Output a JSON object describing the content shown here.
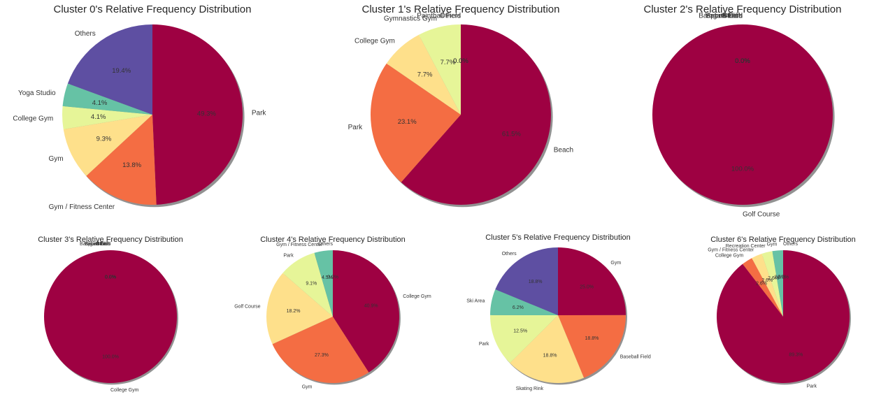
{
  "palette": [
    "#9e0142",
    "#f46d43",
    "#fee08b",
    "#e6f598",
    "#66c2a5",
    "#5e4fa2"
  ],
  "chart_data": [
    {
      "type": "pie",
      "title": "Cluster 0's Relative Frequency Distribution",
      "slices": [
        {
          "label": "Park",
          "value": 49.3,
          "pct": "49.3%",
          "color": "#9e0142"
        },
        {
          "label": "Gym / Fitness Center",
          "value": 13.8,
          "pct": "13.8%",
          "color": "#f46d43"
        },
        {
          "label": "Gym",
          "value": 9.3,
          "pct": "9.3%",
          "color": "#fee08b"
        },
        {
          "label": "College Gym",
          "value": 4.1,
          "pct": "4.1%",
          "color": "#e6f598"
        },
        {
          "label": "Yoga Studio",
          "value": 4.1,
          "pct": "4.1%",
          "color": "#66c2a5"
        },
        {
          "label": "Others",
          "value": 19.4,
          "pct": "19.4%",
          "color": "#5e4fa2"
        }
      ]
    },
    {
      "type": "pie",
      "title": "Cluster 1's Relative Frequency Distribution",
      "slices": [
        {
          "label": "Beach",
          "value": 61.5,
          "pct": "61.5%",
          "color": "#9e0142"
        },
        {
          "label": "Park",
          "value": 23.1,
          "pct": "23.1%",
          "color": "#f46d43"
        },
        {
          "label": "College Gym",
          "value": 7.7,
          "pct": "7.7%",
          "color": "#fee08b"
        },
        {
          "label": "Gymnastics Gym",
          "value": 7.7,
          "pct": "7.7%",
          "color": "#e6f598"
        },
        {
          "label": "Paintball Field",
          "value": 0,
          "pct": "0.0%",
          "color": "#66c2a5"
        },
        {
          "label": "Others",
          "value": 0,
          "pct": "0.0%",
          "color": "#5e4fa2"
        }
      ]
    },
    {
      "type": "pie",
      "title": "Cluster 2's Relative Frequency Distribution",
      "slices": [
        {
          "label": "Golf Course",
          "value": 100.0,
          "pct": "100.0%",
          "color": "#9e0142"
        },
        {
          "label": "Baseball Field",
          "value": 0,
          "pct": "0.0%",
          "color": "#f46d43"
        },
        {
          "label": "Beach",
          "value": 0,
          "pct": "0.0%",
          "color": "#fee08b"
        },
        {
          "label": "Yoga Studio",
          "value": 0,
          "pct": "0.0%",
          "color": "#e6f598"
        },
        {
          "label": "Sports Club",
          "value": 0,
          "pct": "0.0%",
          "color": "#66c2a5"
        },
        {
          "label": "Others",
          "value": 0,
          "pct": "0.0%",
          "color": "#5e4fa2"
        }
      ]
    },
    {
      "type": "pie",
      "title": "Cluster 3's Relative Frequency Distribution",
      "slices": [
        {
          "label": "College Gym",
          "value": 100.0,
          "pct": "100.0%",
          "color": "#9e0142"
        },
        {
          "label": "Baseball Field",
          "value": 0,
          "pct": "0.0%",
          "color": "#f46d43"
        },
        {
          "label": "Beach",
          "value": 0,
          "pct": "0.0%",
          "color": "#fee08b"
        },
        {
          "label": "Yoga Studio",
          "value": 0,
          "pct": "0.0%",
          "color": "#e6f598"
        },
        {
          "label": "Sports Club",
          "value": 0,
          "pct": "0.0%",
          "color": "#66c2a5"
        },
        {
          "label": "Others",
          "value": 0,
          "pct": "0.0%",
          "color": "#5e4fa2"
        }
      ]
    },
    {
      "type": "pie",
      "title": "Cluster 4's Relative Frequency Distribution",
      "slices": [
        {
          "label": "College Gym",
          "value": 40.9,
          "pct": "40.9%",
          "color": "#9e0142"
        },
        {
          "label": "Gym",
          "value": 27.3,
          "pct": "27.3%",
          "color": "#f46d43"
        },
        {
          "label": "Golf Course",
          "value": 18.2,
          "pct": "18.2%",
          "color": "#fee08b"
        },
        {
          "label": "Park",
          "value": 9.1,
          "pct": "9.1%",
          "color": "#e6f598"
        },
        {
          "label": "Gym / Fitness Center",
          "value": 4.5,
          "pct": "4.5%",
          "color": "#66c2a5"
        },
        {
          "label": "Others",
          "value": 0,
          "pct": "0.0%",
          "color": "#5e4fa2"
        }
      ]
    },
    {
      "type": "pie",
      "title": "Cluster 5's Relative Frequency Distribution",
      "slices": [
        {
          "label": "Gym",
          "value": 25.0,
          "pct": "25.0%",
          "color": "#9e0142"
        },
        {
          "label": "Baseball Field",
          "value": 18.8,
          "pct": "18.8%",
          "color": "#f46d43"
        },
        {
          "label": "Skating Rink",
          "value": 18.8,
          "pct": "18.8%",
          "color": "#fee08b"
        },
        {
          "label": "Park",
          "value": 12.5,
          "pct": "12.5%",
          "color": "#e6f598"
        },
        {
          "label": "Ski Area",
          "value": 6.2,
          "pct": "6.2%",
          "color": "#66c2a5"
        },
        {
          "label": "Others",
          "value": 18.8,
          "pct": "18.8%",
          "color": "#5e4fa2"
        }
      ]
    },
    {
      "type": "pie",
      "title": "Cluster 6's Relative Frequency Distribution",
      "slices": [
        {
          "label": "Park",
          "value": 89.3,
          "pct": "89.3%",
          "color": "#9e0142"
        },
        {
          "label": "College Gym",
          "value": 2.6,
          "pct": "2.6%",
          "color": "#f46d43"
        },
        {
          "label": "Gym / Fitness Center",
          "value": 2.6,
          "pct": "2.6%",
          "color": "#fee08b"
        },
        {
          "label": "Recreation Center",
          "value": 2.6,
          "pct": "2.6%",
          "color": "#e6f598"
        },
        {
          "label": "Gym",
          "value": 2.6,
          "pct": "2.6%",
          "color": "#66c2a5"
        },
        {
          "label": "Others",
          "value": 0,
          "pct": "0.0%",
          "color": "#5e4fa2"
        }
      ]
    }
  ]
}
